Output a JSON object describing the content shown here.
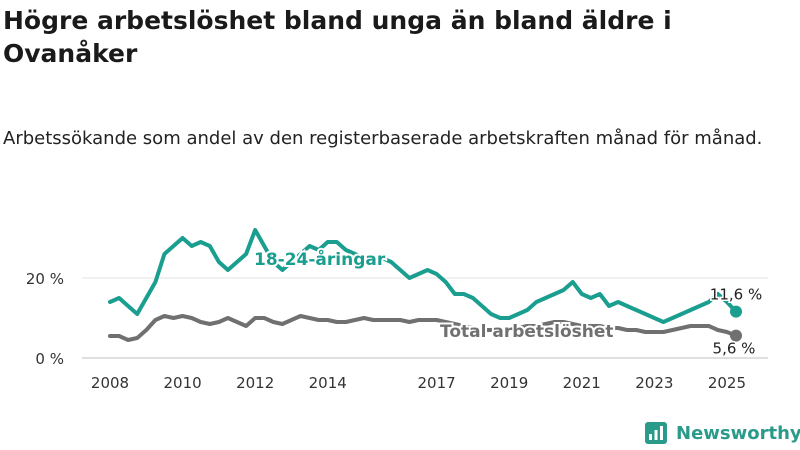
{
  "title": "Högre arbetslöshet bland unga än bland äldre i Ovanåker",
  "subtitle": "Arbetssökande som andel av den registerbaserade arbetskraften månad för månad.",
  "brand": {
    "name": "Newsworthy",
    "icon": "newsworthy-logo-icon",
    "color": "#2a9a8a"
  },
  "chart_data": {
    "type": "line",
    "x_unit": "month",
    "x_range": [
      "2008-01",
      "2025-04"
    ],
    "x_ticks": [
      "2008",
      "2010",
      "2012",
      "2014",
      "2017",
      "2019",
      "2021",
      "2023",
      "2025"
    ],
    "y_ticks": [
      "0 %",
      "20 %"
    ],
    "y_tick_values": [
      0,
      20
    ],
    "ylim": [
      0,
      35
    ],
    "series": [
      {
        "name": "18-24-åringar",
        "color": "#1a9e8f",
        "end_label": "11,6 %",
        "x": [
          "2008-01",
          "2008-04",
          "2008-07",
          "2008-10",
          "2009-01",
          "2009-04",
          "2009-07",
          "2009-10",
          "2010-01",
          "2010-04",
          "2010-07",
          "2010-10",
          "2011-01",
          "2011-04",
          "2011-07",
          "2011-10",
          "2012-01",
          "2012-04",
          "2012-07",
          "2012-10",
          "2013-01",
          "2013-04",
          "2013-07",
          "2013-10",
          "2014-01",
          "2014-04",
          "2014-07",
          "2014-10",
          "2015-01",
          "2015-04",
          "2015-07",
          "2015-10",
          "2016-01",
          "2016-04",
          "2016-07",
          "2016-10",
          "2017-01",
          "2017-04",
          "2017-07",
          "2017-10",
          "2018-01",
          "2018-04",
          "2018-07",
          "2018-10",
          "2019-01",
          "2019-04",
          "2019-07",
          "2019-10",
          "2020-01",
          "2020-04",
          "2020-07",
          "2020-10",
          "2021-01",
          "2021-04",
          "2021-07",
          "2021-10",
          "2022-01",
          "2022-04",
          "2022-07",
          "2022-10",
          "2023-01",
          "2023-04",
          "2023-07",
          "2023-10",
          "2024-01",
          "2024-04",
          "2024-07",
          "2024-10",
          "2025-01",
          "2025-04"
        ],
        "values": [
          14,
          15,
          13,
          11,
          15,
          19,
          26,
          28,
          30,
          28,
          29,
          28,
          24,
          22,
          24,
          26,
          32,
          28,
          24,
          22,
          24,
          26,
          28,
          27,
          29,
          29,
          27,
          26,
          25,
          24,
          25,
          24,
          22,
          20,
          21,
          22,
          21,
          19,
          16,
          16,
          15,
          13,
          11,
          10,
          10,
          11,
          12,
          14,
          15,
          16,
          17,
          19,
          16,
          15,
          16,
          13,
          14,
          13,
          12,
          11,
          10,
          9,
          10,
          11,
          12,
          13,
          14,
          16,
          14,
          11.6
        ]
      },
      {
        "name": "Total arbetslöshet",
        "color": "#707070",
        "end_label": "5,6 %",
        "x": [
          "2008-01",
          "2008-04",
          "2008-07",
          "2008-10",
          "2009-01",
          "2009-04",
          "2009-07",
          "2009-10",
          "2010-01",
          "2010-04",
          "2010-07",
          "2010-10",
          "2011-01",
          "2011-04",
          "2011-07",
          "2011-10",
          "2012-01",
          "2012-04",
          "2012-07",
          "2012-10",
          "2013-01",
          "2013-04",
          "2013-07",
          "2013-10",
          "2014-01",
          "2014-04",
          "2014-07",
          "2014-10",
          "2015-01",
          "2015-04",
          "2015-07",
          "2015-10",
          "2016-01",
          "2016-04",
          "2016-07",
          "2016-10",
          "2017-01",
          "2017-04",
          "2017-07",
          "2017-10",
          "2018-01",
          "2018-04",
          "2018-07",
          "2018-10",
          "2019-01",
          "2019-04",
          "2019-07",
          "2019-10",
          "2020-01",
          "2020-04",
          "2020-07",
          "2020-10",
          "2021-01",
          "2021-04",
          "2021-07",
          "2021-10",
          "2022-01",
          "2022-04",
          "2022-07",
          "2022-10",
          "2023-01",
          "2023-04",
          "2023-07",
          "2023-10",
          "2024-01",
          "2024-04",
          "2024-07",
          "2024-10",
          "2025-01",
          "2025-04"
        ],
        "values": [
          5.5,
          5.5,
          4.5,
          5,
          7,
          9.5,
          10.5,
          10,
          10.5,
          10,
          9,
          8.5,
          9,
          10,
          9,
          8,
          10,
          10,
          9,
          8.5,
          9.5,
          10.5,
          10,
          9.5,
          9.5,
          9,
          9,
          9.5,
          10,
          9.5,
          9.5,
          9.5,
          9.5,
          9,
          9.5,
          9.5,
          9.5,
          9,
          8.5,
          8,
          7.5,
          7,
          7,
          7,
          7,
          7.5,
          8,
          8,
          8.5,
          9,
          9,
          8.5,
          8,
          8,
          8,
          7.5,
          7.5,
          7,
          7,
          6.5,
          6.5,
          6.5,
          7,
          7.5,
          8,
          8,
          8,
          7,
          6.5,
          5.6
        ]
      }
    ]
  }
}
